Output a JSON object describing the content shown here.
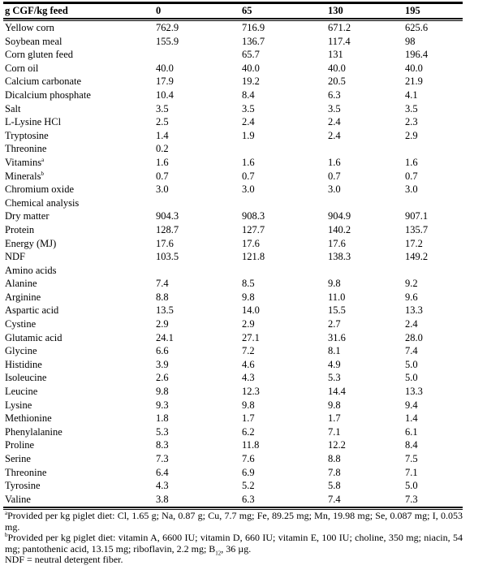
{
  "header": [
    "g CGF/kg feed",
    "0",
    "65",
    "130",
    "195"
  ],
  "rows": [
    {
      "label": "Yellow corn",
      "sup": "",
      "v": [
        "762.9",
        "716.9",
        "671.2",
        "625.6"
      ]
    },
    {
      "label": "Soybean meal",
      "sup": "",
      "v": [
        "155.9",
        "136.7",
        "117.4",
        "98"
      ]
    },
    {
      "label": "Corn gluten feed",
      "sup": "",
      "v": [
        "",
        "65.7",
        "131",
        "196.4"
      ]
    },
    {
      "label": "Corn oil",
      "sup": "",
      "v": [
        "40.0",
        "40.0",
        "40.0",
        "40.0"
      ]
    },
    {
      "label": "Calcium carbonate",
      "sup": "",
      "v": [
        "17.9",
        "19.2",
        "20.5",
        "21.9"
      ]
    },
    {
      "label": "Dicalcium phosphate",
      "sup": "",
      "v": [
        "10.4",
        "8.4",
        "6.3",
        "4.1"
      ]
    },
    {
      "label": "Salt",
      "sup": "",
      "v": [
        "3.5",
        "3.5",
        "3.5",
        "3.5"
      ]
    },
    {
      "label": "L-Lysine HCl",
      "sup": "",
      "v": [
        "2.5",
        "2.4",
        "2.4",
        "2.3"
      ]
    },
    {
      "label": "Tryptosine",
      "sup": "",
      "v": [
        "1.4",
        "1.9",
        "2.4",
        "2.9"
      ]
    },
    {
      "label": "Threonine",
      "sup": "",
      "v": [
        "0.2",
        "",
        "",
        ""
      ]
    },
    {
      "label": "Vitamins",
      "sup": "a",
      "v": [
        "1.6",
        "1.6",
        "1.6",
        "1.6"
      ]
    },
    {
      "label": "Minerals",
      "sup": "b",
      "v": [
        "0.7",
        "0.7",
        "0.7",
        "0.7"
      ]
    },
    {
      "label": "Chromium oxide",
      "sup": "",
      "v": [
        "3.0",
        "3.0",
        "3.0",
        "3.0"
      ]
    },
    {
      "label": "Chemical analysis",
      "sup": "",
      "v": [
        "",
        "",
        "",
        ""
      ]
    },
    {
      "label": "Dry matter",
      "sup": "",
      "v": [
        "904.3",
        "908.3",
        "904.9",
        "907.1"
      ]
    },
    {
      "label": "Protein",
      "sup": "",
      "v": [
        "128.7",
        "127.7",
        "140.2",
        "135.7"
      ]
    },
    {
      "label": "Energy (MJ)",
      "sup": "",
      "v": [
        "17.6",
        "17.6",
        "17.6",
        "17.2"
      ]
    },
    {
      "label": "NDF",
      "sup": "",
      "v": [
        "103.5",
        "121.8",
        "138.3",
        "149.2"
      ]
    },
    {
      "label": "Amino acids",
      "sup": "",
      "v": [
        "",
        "",
        "",
        ""
      ]
    },
    {
      "label": "Alanine",
      "sup": "",
      "v": [
        "7.4",
        "8.5",
        "9.8",
        "9.2"
      ]
    },
    {
      "label": "Arginine",
      "sup": "",
      "v": [
        "8.8",
        "9.8",
        "11.0",
        "9.6"
      ]
    },
    {
      "label": "Aspartic acid",
      "sup": "",
      "v": [
        "13.5",
        "14.0",
        "15.5",
        "13.3"
      ]
    },
    {
      "label": "Cystine",
      "sup": "",
      "v": [
        "2.9",
        "2.9",
        "2.7",
        "2.4"
      ]
    },
    {
      "label": "Glutamic acid",
      "sup": "",
      "v": [
        "24.1",
        "27.1",
        "31.6",
        "28.0"
      ]
    },
    {
      "label": "Glycine",
      "sup": "",
      "v": [
        "6.6",
        "7.2",
        "8.1",
        "7.4"
      ]
    },
    {
      "label": "Histidine",
      "sup": "",
      "v": [
        "3.9",
        "4.6",
        "4.9",
        "5.0"
      ]
    },
    {
      "label": "Isoleucine",
      "sup": "",
      "v": [
        "2.6",
        "4.3",
        "5.3",
        "5.0"
      ]
    },
    {
      "label": "Leucine",
      "sup": "",
      "v": [
        "9.8",
        "12.3",
        "14.4",
        "13.3"
      ]
    },
    {
      "label": "Lysine",
      "sup": "",
      "v": [
        "9.3",
        "9.8",
        "9.8",
        "9.4"
      ]
    },
    {
      "label": "Methionine",
      "sup": "",
      "v": [
        "1.8",
        "1.7",
        "1.7",
        "1.4"
      ]
    },
    {
      "label": "Phenylalanine",
      "sup": "",
      "v": [
        "5.3",
        "6.2",
        "7.1",
        "6.1"
      ]
    },
    {
      "label": "Proline",
      "sup": "",
      "v": [
        "8.3",
        "11.8",
        "12.2",
        "8.4"
      ]
    },
    {
      "label": "Serine",
      "sup": "",
      "v": [
        "7.3",
        "7.6",
        "8.8",
        "7.5"
      ]
    },
    {
      "label": "Threonine",
      "sup": "",
      "v": [
        "6.4",
        "6.9",
        "7.8",
        "7.1"
      ]
    },
    {
      "label": "Tyrosine",
      "sup": "",
      "v": [
        "4.3",
        "5.2",
        "5.8",
        "5.0"
      ]
    },
    {
      "label": "Valine",
      "sup": "",
      "v": [
        "3.8",
        "6.3",
        "7.4",
        "7.3"
      ]
    }
  ],
  "footnotes": {
    "a_mark": "a",
    "a_text": "Provided per kg piglet diet: Cl, 1.65 g; Na, 0.87 g; Cu, 7.7 mg; Fe, 89.25 mg; Mn, 19.98 mg; Se, 0.087 mg; I, 0.053 mg.",
    "b_mark": "b",
    "b_text": "Provided per kg piglet diet: vitamin A, 6600 IU; vitamin D, 660 IU; vitamin E, 100 IU; choline, 350 mg; niacin, 54 mg; pantothenic acid, 13.15 mg; riboflavin, 2.2 mg; B",
    "b_sub": "12",
    "b_tail": ", 36 µg.",
    "ndf": "NDF = neutral detergent fiber."
  }
}
